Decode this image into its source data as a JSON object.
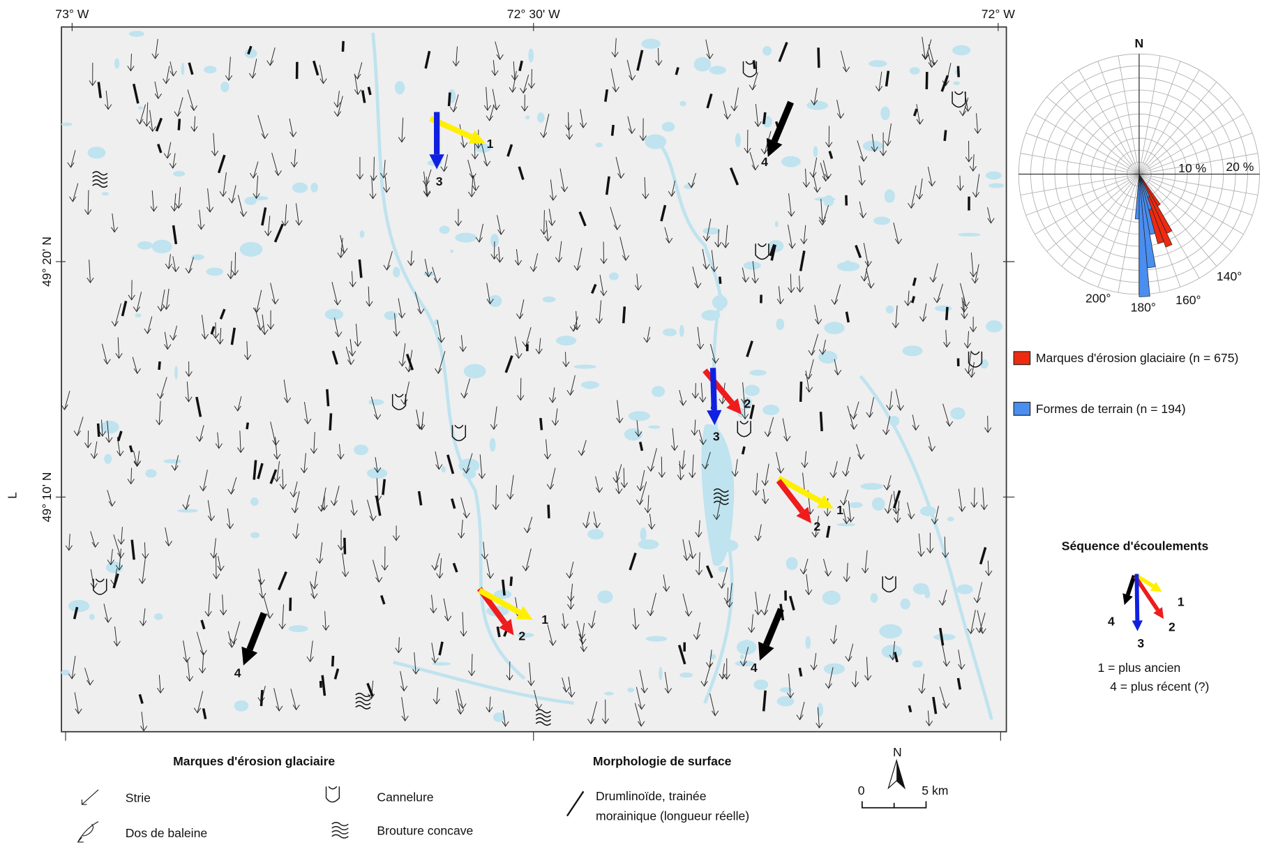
{
  "map": {
    "top_labels": [
      "73° W",
      "72° 30' W",
      "72° W"
    ],
    "left_labels": [
      "49° 20' N",
      "49° 10' N"
    ],
    "side_letter": "L",
    "flow_labels": [
      "1",
      "3",
      "4",
      "2",
      "3",
      "1",
      "2",
      "2",
      "1",
      "4",
      "4"
    ]
  },
  "rose": {
    "north": "N",
    "ring_labels": [
      "10 %",
      "20 %"
    ],
    "angle_labels": [
      "140°",
      "160°",
      "180°",
      "200°"
    ]
  },
  "rose_legend": [
    "Marques d'érosion glaciaire (n = 675)",
    "Formes de terrain (n = 194)"
  ],
  "sequence": {
    "title": "Séquence d'écoulements",
    "labels": [
      "1",
      "2",
      "3",
      "4"
    ],
    "notes": [
      "1 = plus ancien",
      "4 = plus récent (?)"
    ]
  },
  "legend": {
    "erosion_title": "Marques d'érosion glaciaire",
    "erosion_items": [
      "Strie",
      "Dos de baleine",
      "Cannelure",
      "Brouture concave"
    ],
    "morphology_title": "Morphologie de surface",
    "morphology_lines": [
      "Drumlinoïde, trainée",
      "morainique (longueur réelle)"
    ]
  },
  "scale": {
    "north": "N",
    "labels": [
      "0",
      "5 km"
    ]
  }
}
